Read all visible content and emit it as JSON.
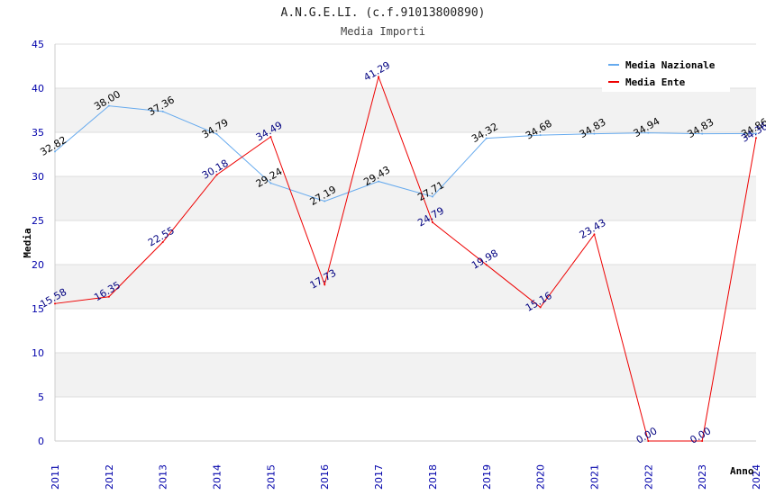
{
  "chart_data": {
    "type": "line",
    "title": "A.N.G.E.LI. (c.f.91013800890)",
    "subtitle": "Media Importi",
    "xlabel": "Anno",
    "ylabel": "Media",
    "ylim": [
      0,
      45
    ],
    "yticks": [
      0,
      5,
      10,
      15,
      20,
      25,
      30,
      35,
      40,
      45
    ],
    "categories": [
      "2011",
      "2012",
      "2013",
      "2014",
      "2015",
      "2016",
      "2017",
      "2018",
      "2019",
      "2020",
      "2021",
      "2022",
      "2023",
      "2024"
    ],
    "legend_position": "top-right",
    "series": [
      {
        "name": "Media Nazionale",
        "color": "#66aaee",
        "label_color": "#000000",
        "values": [
          32.82,
          38.0,
          37.36,
          34.79,
          29.24,
          27.19,
          29.43,
          27.71,
          34.32,
          34.68,
          34.83,
          34.94,
          34.83,
          34.86
        ],
        "labels": [
          "32.82",
          "38.00",
          "37.36",
          "34.79",
          "29.24",
          "27.19",
          "29.43",
          "27.71",
          "34.32",
          "34.68",
          "34.83",
          "34.94",
          "34.83",
          "34.86"
        ]
      },
      {
        "name": "Media Ente",
        "color": "#ee0000",
        "label_color": "#000080",
        "values": [
          15.58,
          16.35,
          22.55,
          30.18,
          34.49,
          17.73,
          41.29,
          24.79,
          19.98,
          15.16,
          23.43,
          0.0,
          0.0,
          34.36
        ],
        "labels": [
          "15.58",
          "16.35",
          "22.55",
          "30.18",
          "34.49",
          "17.73",
          "41.29",
          "24.79",
          "19.98",
          "15.16",
          "23.43",
          "0.00",
          "0.00",
          "34.36"
        ]
      }
    ]
  }
}
